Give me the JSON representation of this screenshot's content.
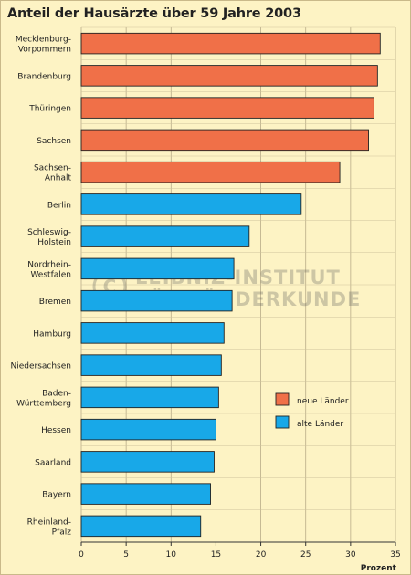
{
  "chart_data": {
    "type": "bar",
    "orientation": "horizontal",
    "title": "Anteil der Hausärzte über 59 Jahre 2003",
    "xlabel": "Prozent",
    "ylabel": "",
    "xlim": [
      0,
      35
    ],
    "xticks": [
      "0",
      "5",
      "10",
      "15",
      "20",
      "25",
      "30",
      "35"
    ],
    "grid": true,
    "legend_position": "right",
    "categories": [
      "Mecklenburg-\nVorpommern",
      "Brandenburg",
      "Thüringen",
      "Sachsen",
      "Sachsen-\nAnhalt",
      "Berlin",
      "Schleswig-\nHolstein",
      "Nordrhein-\nWestfalen",
      "Bremen",
      "Hamburg",
      "Niedersachsen",
      "Baden-\nWürttemberg",
      "Hessen",
      "Saarland",
      "Bayern",
      "Rheinland-\nPfalz"
    ],
    "values": [
      33.3,
      33.0,
      32.6,
      32.0,
      28.8,
      24.5,
      18.7,
      17.0,
      16.8,
      15.9,
      15.6,
      15.3,
      15.0,
      14.8,
      14.4,
      13.3
    ],
    "group": [
      "neue",
      "neue",
      "neue",
      "neue",
      "neue",
      "alte",
      "alte",
      "alte",
      "alte",
      "alte",
      "alte",
      "alte",
      "alte",
      "alte",
      "alte",
      "alte"
    ],
    "legend": [
      {
        "key": "neue",
        "label": "neue Länder",
        "color": "#f07048"
      },
      {
        "key": "alte",
        "label": "alte Länder",
        "color": "#18a8e8"
      }
    ]
  },
  "watermark": "LEIBNIZ-INSTITUT\nFÜR LÄNDERKUNDE"
}
